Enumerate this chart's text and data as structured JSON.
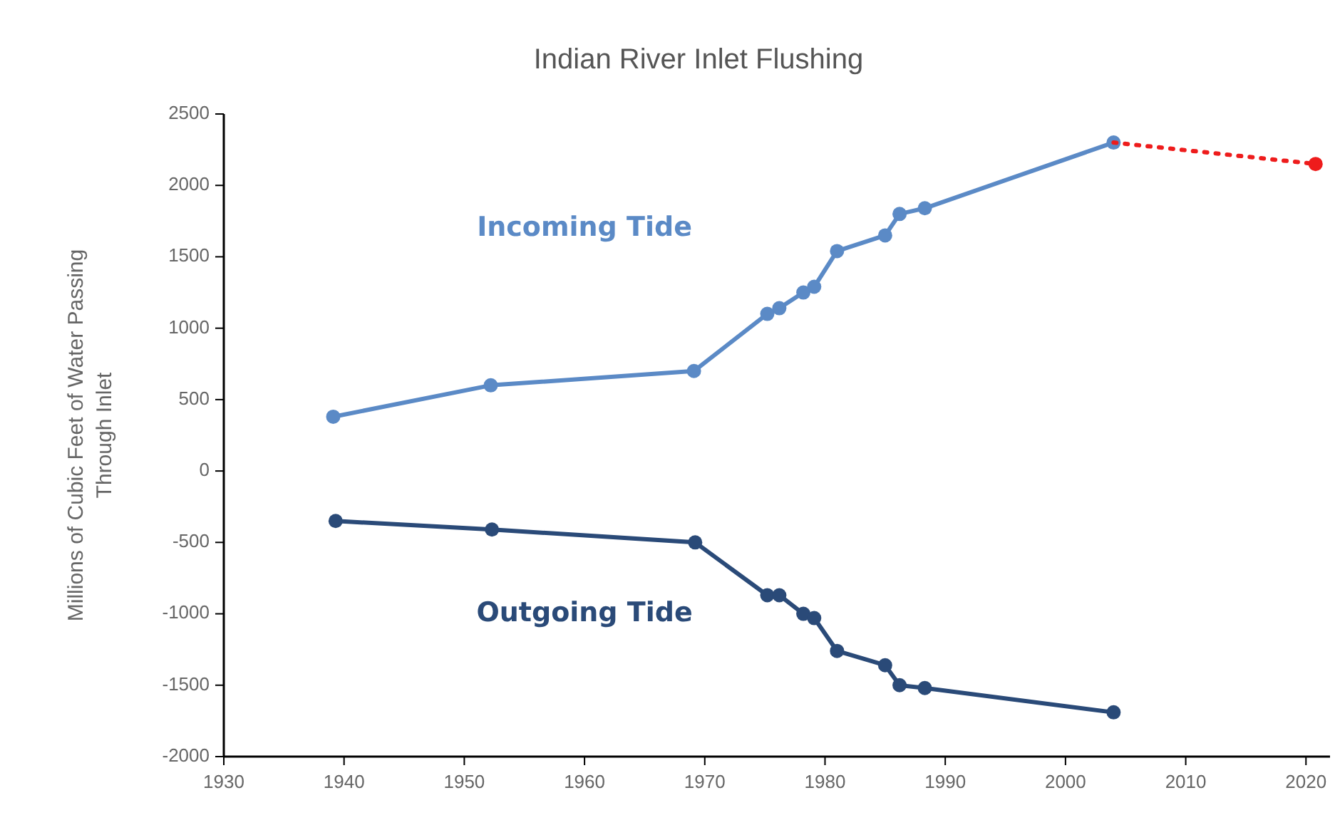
{
  "chart_data": {
    "type": "line",
    "title": "Indian River Inlet Flushing",
    "ylabel": "Millions of Cubic Feet of Water Passing Through Inlet",
    "xlim": [
      1930,
      2022
    ],
    "xticks": [
      1930,
      1940,
      1950,
      1960,
      1970,
      1980,
      1990,
      2000,
      2010,
      2020
    ],
    "ylim": [
      -2000,
      2500
    ],
    "yticks": [
      -2000,
      -1500,
      -1000,
      -500,
      0,
      500,
      1000,
      1500,
      2000,
      2500
    ],
    "marker": "circle",
    "line_style": "solid",
    "series": [
      {
        "name": "Incoming Tide",
        "color": "#5b8ac6",
        "x": [
          1939.1,
          1952.2,
          1969.1,
          1975.2,
          1976.2,
          1978.2,
          1979.1,
          1981,
          1985,
          1986.2,
          1988.3,
          2004
        ],
        "values": [
          380,
          600,
          700,
          1100,
          1140,
          1250,
          1290,
          1540,
          1650,
          1800,
          1840,
          2300
        ]
      },
      {
        "name": "Outgoing Tide",
        "color": "#2a4a78",
        "x": [
          1939.3,
          1952.3,
          1969.2,
          1975.2,
          1976.2,
          1978.2,
          1979.1,
          1981,
          1985,
          1986.2,
          1988.3,
          2004
        ],
        "values": [
          -350,
          -410,
          -500,
          -870,
          -870,
          -1000,
          -1030,
          -1260,
          -1360,
          -1500,
          -1520,
          -1690
        ]
      },
      {
        "color": "#ee1c1c",
        "line_style": "dotted",
        "x": [
          2004,
          2020.8
        ],
        "values": [
          2300,
          2150
        ]
      }
    ]
  }
}
